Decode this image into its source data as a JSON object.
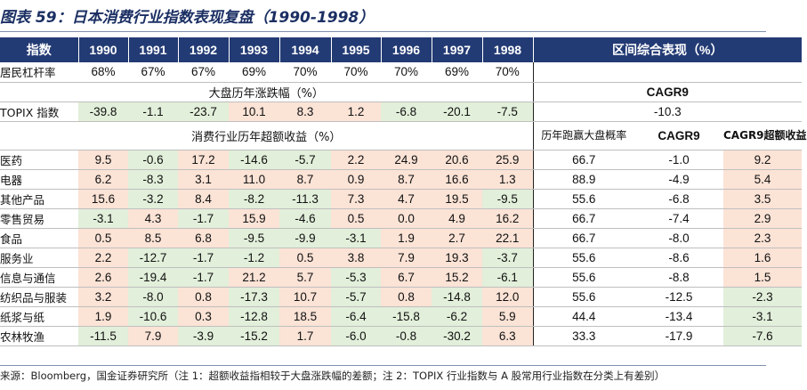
{
  "title": "图表 59：日本消费行业指数表现复盘（1990-1998）",
  "header": {
    "label": "指数",
    "years": [
      "1990",
      "1991",
      "1992",
      "1993",
      "1994",
      "1995",
      "1996",
      "1997",
      "1998"
    ],
    "right": "区间综合表现（%）"
  },
  "leverage": {
    "label": "居民杠杆率",
    "values": [
      "68%",
      "67%",
      "67%",
      "69%",
      "70%",
      "70%",
      "70%",
      "69%",
      "70%"
    ]
  },
  "market_section": {
    "title": "大盘历年涨跌幅（%）",
    "right": "CAGR9"
  },
  "topix": {
    "label": "TOPIX 指数",
    "values": [
      "-39.8",
      "-1.1",
      "-23.7",
      "10.1",
      "8.3",
      "1.2",
      "-6.8",
      "-20.1",
      "-7.5"
    ],
    "cagr": "-10.3"
  },
  "excess_section": {
    "title": "消费行业历年超额收益（%）",
    "col1": "历年跑赢大盘概率",
    "col2": "CAGR9",
    "col3": "CAGR9超额收益"
  },
  "rows": [
    {
      "label": "医药",
      "values": [
        "9.5",
        "-0.6",
        "17.2",
        "-14.6",
        "-5.7",
        "2.2",
        "24.9",
        "20.6",
        "25.9"
      ],
      "prob": "66.7",
      "cagr": "-1.0",
      "excess": "9.2"
    },
    {
      "label": "电器",
      "values": [
        "6.2",
        "-8.3",
        "3.1",
        "11.0",
        "8.7",
        "0.9",
        "8.7",
        "16.6",
        "1.3"
      ],
      "prob": "88.9",
      "cagr": "-4.9",
      "excess": "5.4"
    },
    {
      "label": "其他产品",
      "values": [
        "15.6",
        "-3.2",
        "8.4",
        "-8.2",
        "-11.3",
        "7.3",
        "4.7",
        "19.5",
        "-9.5"
      ],
      "prob": "55.6",
      "cagr": "-6.8",
      "excess": "3.5"
    },
    {
      "label": "零售贸易",
      "values": [
        "-3.1",
        "4.3",
        "-1.7",
        "15.9",
        "-4.6",
        "0.5",
        "0.0",
        "4.9",
        "16.2"
      ],
      "prob": "66.7",
      "cagr": "-7.4",
      "excess": "2.9"
    },
    {
      "label": "食品",
      "values": [
        "0.5",
        "8.5",
        "6.8",
        "-9.5",
        "-9.9",
        "-3.1",
        "1.9",
        "2.7",
        "22.1"
      ],
      "prob": "66.7",
      "cagr": "-8.0",
      "excess": "2.3"
    },
    {
      "label": "服务业",
      "values": [
        "2.2",
        "-12.7",
        "-1.7",
        "-1.2",
        "0.5",
        "3.8",
        "7.9",
        "19.3",
        "-3.7"
      ],
      "prob": "55.6",
      "cagr": "-8.6",
      "excess": "1.6"
    },
    {
      "label": "信息与通信",
      "values": [
        "2.6",
        "-19.4",
        "-1.7",
        "21.2",
        "5.7",
        "-5.3",
        "6.7",
        "15.2",
        "-6.1"
      ],
      "prob": "55.6",
      "cagr": "-8.8",
      "excess": "1.5"
    },
    {
      "label": "纺织品与服装",
      "values": [
        "3.2",
        "-8.0",
        "0.8",
        "-17.3",
        "10.7",
        "-5.7",
        "0.8",
        "-14.8",
        "12.0"
      ],
      "prob": "55.6",
      "cagr": "-12.5",
      "excess": "-2.3"
    },
    {
      "label": "纸浆与纸",
      "values": [
        "1.9",
        "-10.6",
        "0.3",
        "-12.8",
        "18.5",
        "-6.4",
        "-15.8",
        "-6.2",
        "5.9"
      ],
      "prob": "44.4",
      "cagr": "-13.4",
      "excess": "-3.1"
    },
    {
      "label": "农林牧渔",
      "values": [
        "-11.5",
        "7.9",
        "-3.9",
        "-15.2",
        "1.7",
        "-6.0",
        "-0.8",
        "-30.2",
        "6.3"
      ],
      "prob": "33.3",
      "cagr": "-17.9",
      "excess": "-7.6"
    }
  ],
  "source": "来源：Bloomberg，国金证券研究所（注 1：超额收益指相较于大盘涨跌幅的差额；注 2：TOPIX 行业指数与 A 股常用行业指数在分类上有差别）",
  "colors": {
    "header_bg": "#233b74",
    "positive_bg": "#fbe3d6",
    "negative_bg": "#e2efda"
  }
}
